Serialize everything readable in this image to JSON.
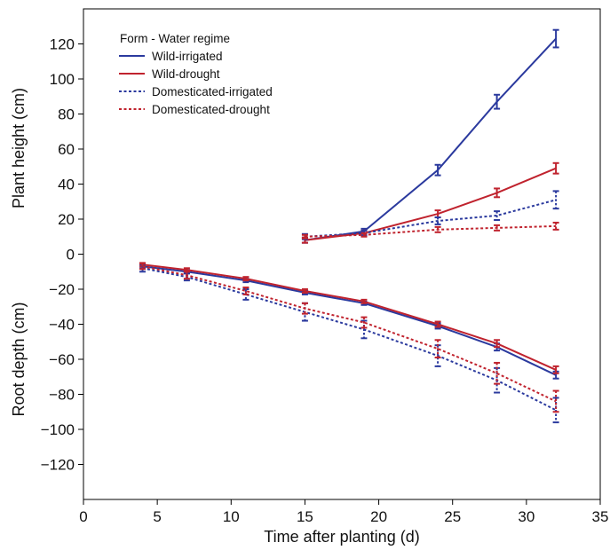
{
  "chart_data": {
    "type": "line",
    "xlabel": "Time after planting (d)",
    "ylabel_top": "Plant height (cm)",
    "ylabel_bottom": "Root depth (cm)",
    "xlim": [
      0,
      35
    ],
    "ylim": [
      -140,
      140
    ],
    "x_ticks": [
      0,
      5,
      10,
      15,
      20,
      25,
      30,
      35
    ],
    "y_ticks": [
      -120,
      -100,
      -80,
      -60,
      -40,
      -20,
      0,
      20,
      40,
      60,
      80,
      100,
      120
    ],
    "y_tick_labels": [
      "−120",
      "−100",
      "−80",
      "−60",
      "−40",
      "−20",
      "0",
      "20",
      "40",
      "60",
      "80",
      "100",
      "120"
    ],
    "grid": false,
    "legend": {
      "title": "Form - Water regime",
      "position": "top-left"
    },
    "colors": {
      "blue": "#2b3a9e",
      "red": "#c0232e"
    },
    "series": [
      {
        "name": "Wild-irrigated",
        "measure": "plant height",
        "color": "#2b3a9e",
        "dashed": false,
        "x": [
          15,
          19,
          24,
          28,
          32
        ],
        "y": [
          8,
          13,
          48,
          87,
          123
        ],
        "err": [
          1.5,
          1.5,
          3,
          4,
          5
        ]
      },
      {
        "name": "Wild-drought",
        "measure": "plant height",
        "color": "#c0232e",
        "dashed": false,
        "x": [
          15,
          19,
          24,
          28,
          32
        ],
        "y": [
          8,
          12,
          23,
          35,
          49
        ],
        "err": [
          1.5,
          1.5,
          2,
          2.5,
          3
        ]
      },
      {
        "name": "Domesticated-irrigated",
        "measure": "plant height",
        "color": "#2b3a9e",
        "dashed": true,
        "x": [
          15,
          19,
          24,
          28,
          32
        ],
        "y": [
          10,
          12,
          19,
          22,
          31
        ],
        "err": [
          1.5,
          1.5,
          2,
          2.5,
          5
        ]
      },
      {
        "name": "Domesticated-drought",
        "measure": "plant height",
        "color": "#c0232e",
        "dashed": true,
        "x": [
          15,
          19,
          24,
          28,
          32
        ],
        "y": [
          10,
          11,
          14,
          15,
          16
        ],
        "err": [
          1,
          1,
          1.5,
          1.5,
          2
        ]
      },
      {
        "name": "Wild-irrigated",
        "measure": "root depth",
        "color": "#2b3a9e",
        "dashed": false,
        "x": [
          4,
          7,
          11,
          15,
          19,
          24,
          28,
          32
        ],
        "y": [
          -7,
          -10,
          -15,
          -22,
          -28,
          -41,
          -53,
          -69
        ],
        "err": [
          1,
          1,
          1,
          1,
          1,
          1.5,
          2,
          2
        ]
      },
      {
        "name": "Wild-drought",
        "measure": "root depth",
        "color": "#c0232e",
        "dashed": false,
        "x": [
          4,
          7,
          11,
          15,
          19,
          24,
          28,
          32
        ],
        "y": [
          -6,
          -9,
          -14,
          -21,
          -27,
          -40,
          -51,
          -66
        ],
        "err": [
          1,
          1,
          1,
          1,
          1,
          1.5,
          2,
          2
        ]
      },
      {
        "name": "Domesticated-irrigated",
        "measure": "root depth",
        "color": "#2b3a9e",
        "dashed": true,
        "x": [
          4,
          7,
          11,
          15,
          19,
          24,
          28,
          32
        ],
        "y": [
          -8,
          -13,
          -23,
          -33,
          -43,
          -58,
          -72,
          -89
        ],
        "err": [
          2,
          2,
          3,
          5,
          5,
          6,
          7,
          7
        ]
      },
      {
        "name": "Domesticated-drought",
        "measure": "root depth",
        "color": "#c0232e",
        "dashed": true,
        "x": [
          4,
          7,
          11,
          15,
          19,
          24,
          28,
          32
        ],
        "y": [
          -7,
          -12,
          -21,
          -31,
          -39,
          -54,
          -68,
          -84
        ],
        "err": [
          1.5,
          2,
          2,
          3,
          3,
          5,
          6,
          6
        ]
      }
    ]
  }
}
